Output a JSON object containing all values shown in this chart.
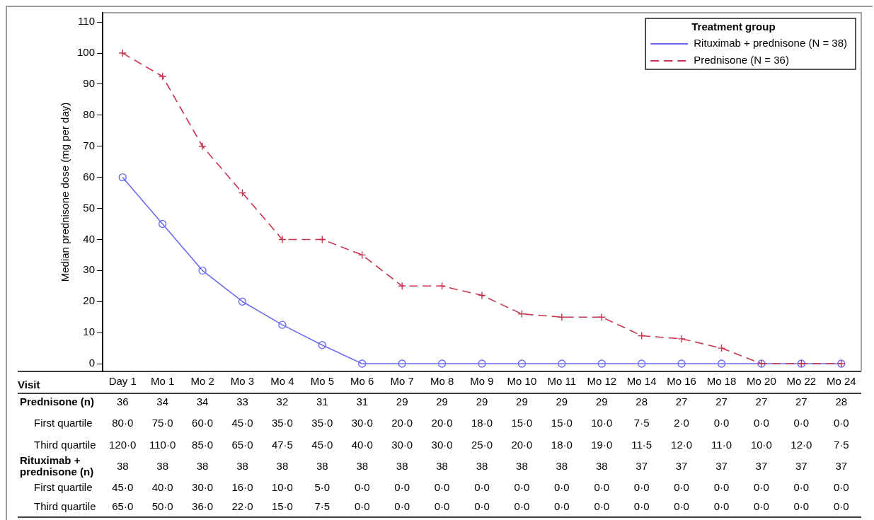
{
  "chart_data": {
    "type": "line",
    "ylabel": "Median prednisone dose (mg per day)",
    "legend_title": "Treatment group",
    "legend": "top right",
    "grid": false,
    "categories": [
      "Day 1",
      "Mo 1",
      "Mo 2",
      "Mo 3",
      "Mo 4",
      "Mo 5",
      "Mo 6",
      "Mo 7",
      "Mo 8",
      "Mo 9",
      "Mo 10",
      "Mo 11",
      "Mo 12",
      "Mo 14",
      "Mo 16",
      "Mo 18",
      "Mo 20",
      "Mo 22",
      "Mo 24"
    ],
    "ylim": [
      -2.5,
      113
    ],
    "yticks": [
      0,
      10,
      20,
      30,
      40,
      50,
      60,
      70,
      80,
      90,
      100,
      110
    ],
    "series": [
      {
        "name": "Rituximab + prednisone (N = 38)",
        "color": "#6b6bf2",
        "marker": "circle",
        "line_style": "solid",
        "values": [
          60,
          45,
          30,
          20,
          12.5,
          6,
          0,
          0,
          0,
          0,
          0,
          0,
          0,
          0,
          0,
          0,
          0,
          0,
          0
        ]
      },
      {
        "name": "Prednisone (N = 36)",
        "color": "#c8334d",
        "marker": "cross",
        "line_style": "dashed",
        "values": [
          100,
          92.5,
          70,
          55,
          40,
          40,
          35,
          25,
          25,
          22,
          16,
          15,
          15,
          9,
          8,
          5,
          0,
          0,
          0
        ]
      }
    ],
    "annotations": [
      "Visit",
      "Prednisone (n)",
      "36",
      "34",
      "34",
      "33",
      "32",
      "31",
      "31",
      "29",
      "29",
      "29",
      "29",
      "29",
      "29",
      "28",
      "27",
      "27",
      "27",
      "27",
      "28",
      "First quartile",
      "80·0",
      "75·0",
      "60·0",
      "45·0",
      "35·0",
      "35·0",
      "30·0",
      "20·0",
      "20·0",
      "18·0",
      "15·0",
      "15·0",
      "10·0",
      "7·5",
      "2·0",
      "0·0",
      "0·0",
      "0·0",
      "0·0",
      "Third quartile",
      "120·0",
      "110·0",
      "85·0",
      "65·0",
      "47·5",
      "45·0",
      "40·0",
      "30·0",
      "30·0",
      "25·0",
      "20·0",
      "18·0",
      "19·0",
      "11·5",
      "12·0",
      "11·0",
      "10·0",
      "12·0",
      "7·5",
      "Rituximab + prednisone (n)",
      "38",
      "38",
      "38",
      "38",
      "38",
      "38",
      "38",
      "38",
      "38",
      "38",
      "38",
      "38",
      "38",
      "37",
      "37",
      "37",
      "37",
      "37",
      "37",
      "First quartile",
      "45·0",
      "40·0",
      "30·0",
      "16·0",
      "10·0",
      "5·0",
      "0·0",
      "0·0",
      "0·0",
      "0·0",
      "0·0",
      "0·0",
      "0·0",
      "0·0",
      "0·0",
      "0·0",
      "0·0",
      "0·0",
      "0·0",
      "Third quartile",
      "65·0",
      "50·0",
      "36·0",
      "22·0",
      "15·0",
      "7·5",
      "0·0",
      "0·0",
      "0·0",
      "0·0",
      "0·0",
      "0·0",
      "0·0",
      "0·0",
      "0·0",
      "0·0",
      "0·0",
      "0·0",
      "0·0"
    ]
  }
}
